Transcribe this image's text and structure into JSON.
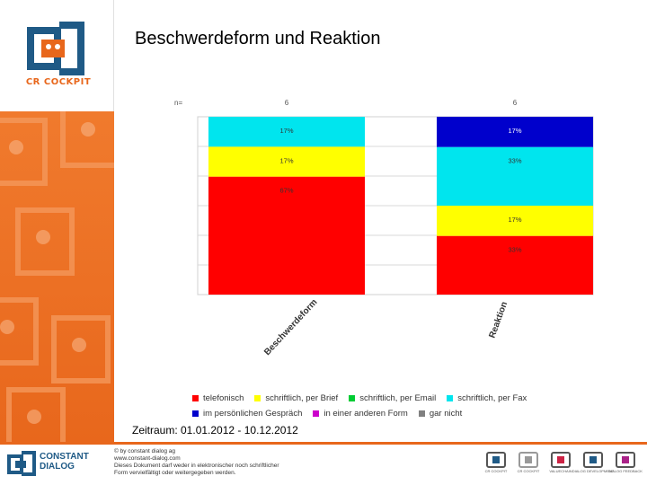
{
  "page": {
    "title": "Beschwerdeform und Reaktion",
    "date_range": "Zeitraum: 01.01.2012 - 10.12.2012"
  },
  "sidebar": {
    "logo_text": "CR COCKPIT",
    "accent": "#e8671c"
  },
  "chart_data": {
    "type": "bar",
    "stacked": true,
    "percent": true,
    "n_label": "n=",
    "categories": [
      "Beschwerdeform",
      "Reaktion"
    ],
    "n_values": [
      "6",
      "6"
    ],
    "series": [
      {
        "name": "telefonisch",
        "color": "#ff0000",
        "values": [
          67,
          33
        ],
        "labels": [
          "67%",
          "33%"
        ]
      },
      {
        "name": "schriftlich, per Brief",
        "color": "#ffff00",
        "values": [
          17,
          17
        ],
        "labels": [
          "17%",
          "17%"
        ]
      },
      {
        "name": "schriftlich, per Email",
        "color": "#00cc33",
        "values": [
          0,
          0
        ],
        "labels": [
          "",
          ""
        ]
      },
      {
        "name": "schriftlich, per Fax",
        "color": "#00e5ee",
        "values": [
          17,
          33
        ],
        "labels": [
          "17%",
          "33%"
        ]
      },
      {
        "name": "im persönlichen Gespräch",
        "color": "#0000cc",
        "values": [
          0,
          17
        ],
        "labels": [
          "",
          "17%"
        ]
      },
      {
        "name": "in einer anderen Form",
        "color": "#cc00cc",
        "values": [
          0,
          0
        ],
        "labels": [
          "",
          ""
        ]
      },
      {
        "name": "gar nicht",
        "color": "#808080",
        "values": [
          0,
          0
        ],
        "labels": [
          "",
          ""
        ]
      }
    ],
    "ylim": [
      0,
      100
    ],
    "grid": true,
    "legend_position": "bottom"
  },
  "footer": {
    "brand_line1": "CONSTANT",
    "brand_line2": "DIALOG",
    "info": [
      "© by constant dialog ag",
      "www.constant-dialog.com",
      "Dieses Dokument darf weder in elektronischer noch schriftlicher",
      "Form vervielfältigt oder weitergegeben werden."
    ],
    "badges": [
      {
        "label": "CR COCKPIT",
        "color": "#1f5a86"
      },
      {
        "label": "CR COCKPIT",
        "color": "#999999"
      },
      {
        "label": "VALUECHAIN",
        "color": "#cc2244"
      },
      {
        "label": "DIALOG DEVELOPMENT",
        "color": "#1f5a86"
      },
      {
        "label": "DIALOG FEEDBACK",
        "color": "#aa2288"
      }
    ]
  }
}
